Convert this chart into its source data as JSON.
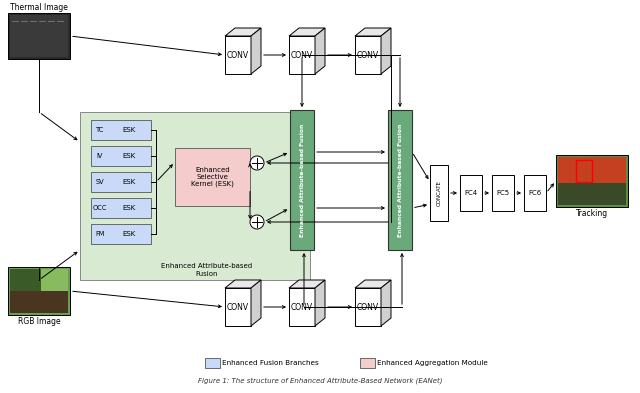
{
  "bg_color": "#ffffff",
  "light_blue": "#c9daf8",
  "light_green": "#d9ead3",
  "light_pink": "#f4cccc",
  "border_color": "#000000",
  "esk_labels": [
    "TC",
    "IV",
    "SV",
    "OCC",
    "FM"
  ],
  "fab_color": "#6aa84f",
  "legend_items": [
    {
      "label": "Enhanced Fusion Branches",
      "color": "#c9daf8"
    },
    {
      "label": "Enhanced Aggregation Module",
      "color": "#f4cccc"
    }
  ],
  "caption": "Figure 1: The structure of Enhanced Attribute-Based Network (EANet)"
}
